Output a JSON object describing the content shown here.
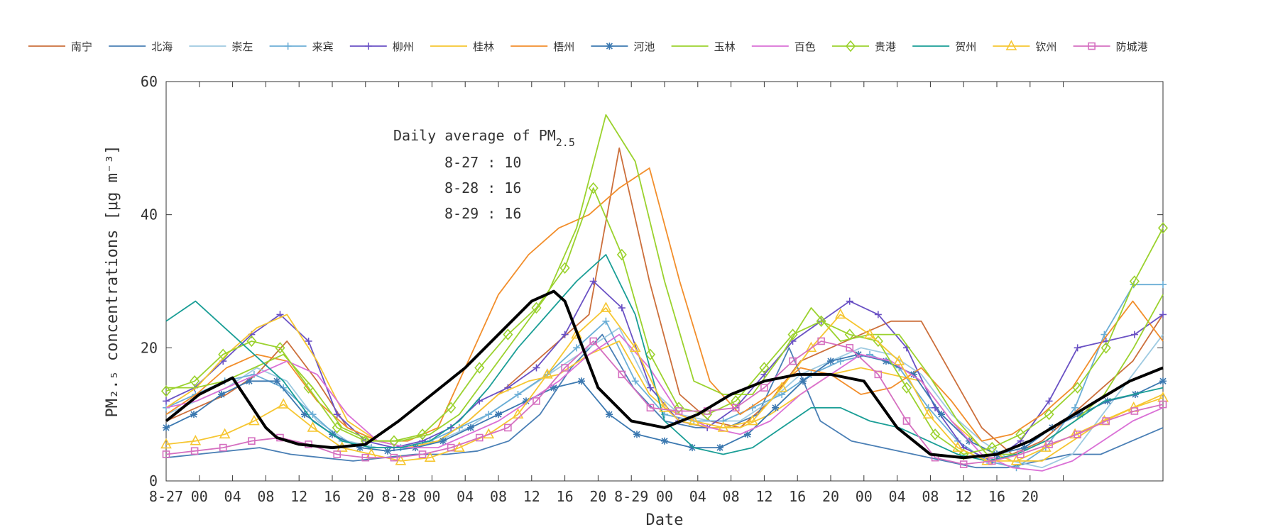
{
  "chart_data": {
    "type": "line",
    "xlabel": "Date",
    "ylabel": "PM₂.₅ concentrations [μg m⁻³]",
    "ylim": [
      0,
      60
    ],
    "yticks": [
      0,
      20,
      40,
      60
    ],
    "xlim": [
      0,
      90
    ],
    "xtick_positions": [
      0,
      3,
      6,
      9,
      12,
      15,
      18,
      21,
      24,
      27,
      30,
      33,
      36,
      39,
      42,
      45,
      48,
      51,
      54,
      57,
      60,
      63,
      66,
      69,
      72,
      75,
      78,
      81
    ],
    "xtick_labels": [
      "8-27",
      "00",
      "04",
      "08",
      "12",
      "16",
      "20",
      "8-28",
      "00",
      "04",
      "08",
      "12",
      "16",
      "20",
      "8-29",
      "00",
      "04",
      "08",
      "12",
      "16",
      "20",
      "00",
      "04",
      "08",
      "12",
      "16",
      "20",
      ""
    ],
    "x_unit": "hours since 8-27 00:00 (labels as printed)",
    "grid": false,
    "legend": "top, horizontal, above plot",
    "annotation": {
      "title": "Daily average of PM",
      "title_sub": "2.5",
      "lines": [
        "8-27 : 10",
        "8-28 : 16",
        "8-29 : 16"
      ]
    },
    "mean_series": {
      "color": "#000000",
      "x": [
        0,
        3,
        6,
        9,
        10,
        12,
        15,
        18,
        21,
        24,
        27,
        30,
        33,
        35,
        36,
        39,
        42,
        45,
        48,
        51,
        54,
        57,
        60,
        63,
        66,
        69,
        72,
        75,
        78,
        81,
        84,
        87,
        90
      ],
      "values": [
        9,
        13,
        15.5,
        8,
        6.5,
        5.5,
        5,
        5.5,
        9,
        13,
        17,
        22,
        27,
        28.5,
        27,
        14,
        9,
        8,
        10,
        13,
        15,
        16,
        16,
        15,
        8,
        4,
        3.5,
        4,
        6,
        9,
        12,
        15,
        17
      ]
    },
    "series": [
      {
        "name": "南宁",
        "color": "#cc6f3b",
        "marker": "none",
        "values": [
          9,
          11,
          13,
          16,
          21,
          15,
          8,
          6,
          5,
          6,
          9,
          13,
          17,
          21,
          25,
          50,
          30,
          13,
          9,
          8,
          12,
          18,
          20,
          22,
          24,
          24,
          16,
          8,
          4,
          6,
          10,
          14,
          18,
          25
        ]
      },
      {
        "name": "北海",
        "color": "#4a7fb5",
        "marker": "none",
        "values": [
          3.5,
          4,
          4.5,
          5,
          4,
          3.5,
          3,
          3.5,
          4,
          4,
          4.5,
          6,
          10,
          17,
          22,
          14,
          9,
          8,
          8,
          10,
          20,
          9,
          6,
          5,
          4,
          3,
          2,
          2,
          3,
          4,
          4,
          6,
          8
        ]
      },
      {
        "name": "崇左",
        "color": "#9ecae1",
        "marker": "none",
        "values": [
          10,
          12,
          14,
          17,
          15,
          9,
          6,
          5,
          5,
          6,
          8,
          11,
          14,
          17,
          20,
          23,
          14,
          10,
          9,
          9,
          12,
          16,
          18,
          20,
          19,
          16,
          10,
          6,
          3,
          2,
          4,
          10,
          16,
          22
        ]
      },
      {
        "name": "来宾",
        "color": "#6baed6",
        "marker": "plus",
        "values": [
          11,
          13,
          15,
          16,
          14,
          10,
          6,
          5,
          5,
          6,
          8,
          10,
          13,
          16,
          20,
          24,
          15,
          10,
          9,
          9,
          11,
          13,
          16,
          18,
          19,
          17,
          11,
          6,
          3,
          2,
          5,
          11,
          22,
          29.5,
          29.5
        ]
      },
      {
        "name": "柳州",
        "color": "#6a51c4",
        "marker": "plus",
        "values": [
          12,
          14,
          18,
          22,
          25,
          21,
          10,
          6,
          5,
          6,
          8,
          12,
          14,
          17,
          22,
          30,
          26,
          14,
          9,
          8,
          11,
          16,
          21,
          24,
          27,
          25,
          20,
          11,
          5,
          3,
          6,
          12,
          20,
          21,
          22,
          25
        ]
      },
      {
        "name": "桂林",
        "color": "#f6c631",
        "marker": "none",
        "values": [
          11,
          14,
          19,
          23,
          25,
          18,
          9,
          6,
          5,
          6,
          9,
          13,
          15,
          16,
          19,
          21,
          13,
          9,
          8,
          8,
          10,
          13,
          16,
          17,
          16,
          15,
          9,
          5,
          3,
          3,
          6,
          9,
          11,
          13
        ]
      },
      {
        "name": "梧州",
        "color": "#f28e2b",
        "marker": "none",
        "values": [
          10,
          13,
          17,
          19,
          18,
          12,
          8,
          6,
          6,
          8,
          18,
          28,
          34,
          38,
          40,
          44,
          47,
          30,
          15,
          10,
          13,
          17,
          16,
          13,
          14,
          17,
          12,
          6,
          7,
          10,
          14,
          21,
          27,
          21
        ]
      },
      {
        "name": "河池",
        "color": "#3b78b0",
        "marker": "star",
        "values": [
          8,
          10,
          13,
          15,
          15,
          10,
          7,
          5,
          4.5,
          5,
          6,
          8,
          10,
          12,
          14,
          15,
          10,
          7,
          6,
          5,
          5,
          7,
          11,
          15,
          18,
          19,
          18,
          16,
          10,
          6,
          4,
          5,
          8,
          10,
          12,
          13,
          15
        ]
      },
      {
        "name": "玉林",
        "color": "#9bd22e",
        "marker": "none",
        "values": [
          14,
          14,
          15,
          17,
          19,
          14,
          8,
          6,
          6,
          7,
          10,
          16,
          22,
          28,
          38,
          55,
          48,
          30,
          15,
          13,
          13,
          19,
          26,
          21,
          22,
          22,
          16,
          9,
          4,
          4,
          6,
          9,
          13,
          20,
          28
        ]
      },
      {
        "name": "百色",
        "color": "#da70d6",
        "marker": "none",
        "values": [
          11,
          12,
          14,
          16,
          18,
          16,
          10,
          6,
          5,
          5,
          7,
          9,
          12,
          15,
          19,
          22,
          17,
          10,
          8,
          7,
          9,
          13,
          16,
          19,
          18,
          15,
          9,
          4,
          2,
          1.5,
          3,
          6,
          9,
          11
        ]
      },
      {
        "name": "贵港",
        "color": "#9bd22e",
        "marker": "diamond",
        "values": [
          13.5,
          15,
          19,
          21,
          20,
          14,
          8,
          6,
          6,
          7,
          11,
          17,
          22,
          26,
          32,
          44,
          34,
          19,
          11,
          10,
          12,
          17,
          22,
          24,
          22,
          21,
          14,
          7,
          4,
          5,
          7,
          10,
          14,
          20,
          30,
          38
        ]
      },
      {
        "name": "贺州",
        "color": "#1a9e96",
        "marker": "none",
        "values": [
          24,
          27,
          23,
          19,
          15,
          9,
          6,
          5,
          5,
          6,
          9,
          14,
          20,
          25,
          30,
          34,
          25,
          9,
          5,
          4,
          5,
          8,
          11,
          11,
          9,
          8,
          6,
          4,
          3,
          4,
          6,
          9,
          12,
          13,
          14
        ]
      },
      {
        "name": "钦州",
        "color": "#f6c631",
        "marker": "triangle",
        "values": [
          5.5,
          6,
          7,
          9,
          11.5,
          8,
          5,
          4,
          3,
          3.5,
          5,
          7,
          10,
          16,
          22,
          26,
          20,
          11,
          9,
          8,
          9,
          14,
          20,
          25,
          22,
          18,
          10,
          5,
          3,
          3,
          5,
          7,
          9,
          11,
          12.5
        ]
      },
      {
        "name": "防城港",
        "color": "#d56fc0",
        "marker": "square",
        "values": [
          4,
          4.5,
          5,
          6,
          6.5,
          5.5,
          4,
          3.5,
          3.5,
          4,
          5,
          6.5,
          8,
          12,
          17,
          21,
          16,
          11,
          10.5,
          10.5,
          11,
          14,
          18,
          21,
          20,
          16,
          9,
          3.5,
          2.5,
          3,
          4,
          5.5,
          7,
          9,
          10.5,
          11.5
        ]
      }
    ]
  }
}
